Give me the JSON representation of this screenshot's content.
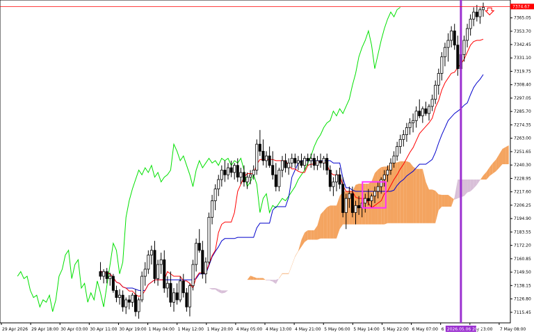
{
  "chart_data": {
    "type": "line",
    "y_axis": {
      "ticks": [
        7365.05,
        7353.7,
        7342.45,
        7331.1,
        7319.75,
        7308.4,
        7297.05,
        7285.7,
        7274.35,
        7263.0,
        7251.65,
        7240.3,
        7228.95,
        7217.6,
        7206.25,
        7194.9,
        7183.55,
        7172.2,
        7160.85,
        7149.5,
        7138.15,
        7126.8,
        7115.45
      ],
      "tick_labels": [
        "7365.05",
        "7353.70",
        "7342.45",
        "7331.10",
        "7319.75",
        "7308.40",
        "7297.05",
        "7285.70",
        "7274.35",
        "7263.00",
        "7251.65",
        "7240.30",
        "7228.95",
        "7217.60",
        "7206.25",
        "7194.90",
        "7183.55",
        "7172.20",
        "7160.85",
        "7149.50",
        "7138.15",
        "7126.80",
        "7115.45"
      ],
      "ylim": [
        7106.5,
        7380.2
      ]
    },
    "x_axis": {
      "tick_labels": [
        "29 Apr 2026",
        "29 Apr 18:00",
        "30 Apr 03:00",
        "30 Apr 11:00",
        "30 Apr 19:00",
        "1 May 04:00",
        "1 May 12:00",
        "1 May 20:00",
        "4 May 05:00",
        "4 May 13:00",
        "4 May 21:00",
        "5 May 06:00",
        "5 May 14:00",
        "5 May 22:00",
        "6 May 07:00",
        "6 May 15:00",
        "May 23:00",
        "7 May 08:00"
      ],
      "tick_index": [
        0,
        9,
        18,
        27,
        36,
        45,
        54,
        63,
        72,
        81,
        90,
        99,
        108,
        117,
        126,
        135,
        144,
        153
      ],
      "bars": 160
    },
    "current_price": {
      "value": 7374.67,
      "label": "7374.67"
    },
    "vertical_marker_label": "2026.05.06 20:00",
    "colors": {
      "bull_candle": "#ffffff",
      "bear_candle": "#000000",
      "tenkan": "#ff0000",
      "kijun": "#0000cc",
      "chikou": "#00e000",
      "kumo_bull": "#f4a460",
      "kumo_bear": "#d8bfd8",
      "vline": "#9b30d0",
      "box": "#ff30ff",
      "price_line": "#ff0000"
    },
    "candles": [
      [
        7150,
        7158,
        7143,
        7146
      ],
      [
        7146,
        7152,
        7140,
        7150
      ],
      [
        7150,
        7153,
        7140,
        7144
      ],
      [
        7144,
        7149,
        7138,
        7146
      ],
      [
        7146,
        7148,
        7132,
        7134
      ],
      [
        7134,
        7138,
        7124,
        7128
      ],
      [
        7128,
        7135,
        7122,
        7130
      ],
      [
        7130,
        7134,
        7116,
        7120
      ],
      [
        7120,
        7128,
        7114,
        7126
      ],
      [
        7126,
        7130,
        7118,
        7124
      ],
      [
        7124,
        7132,
        7120,
        7130
      ],
      [
        7130,
        7135,
        7112,
        7116
      ],
      [
        7116,
        7128,
        7110,
        7126
      ],
      [
        7126,
        7150,
        7124,
        7146
      ],
      [
        7146,
        7158,
        7138,
        7152
      ],
      [
        7152,
        7168,
        7148,
        7164
      ],
      [
        7164,
        7172,
        7156,
        7168
      ],
      [
        7168,
        7176,
        7140,
        7144
      ],
      [
        7144,
        7160,
        7138,
        7156
      ],
      [
        7156,
        7166,
        7148,
        7160
      ],
      [
        7160,
        7168,
        7132,
        7136
      ],
      [
        7136,
        7146,
        7128,
        7140
      ],
      [
        7140,
        7150,
        7120,
        7124
      ],
      [
        7124,
        7136,
        7116,
        7132
      ],
      [
        7132,
        7140,
        7122,
        7126
      ],
      [
        7126,
        7146,
        7124,
        7142
      ],
      [
        7142,
        7148,
        7128,
        7132
      ],
      [
        7132,
        7136,
        7116,
        7120
      ],
      [
        7120,
        7140,
        7112,
        7138
      ],
      [
        7138,
        7160,
        7134,
        7156
      ],
      [
        7156,
        7178,
        7150,
        7174
      ],
      [
        7174,
        7186,
        7166,
        7168
      ],
      [
        7168,
        7176,
        7144,
        7148
      ],
      [
        7148,
        7162,
        7140,
        7158
      ],
      [
        7158,
        7200,
        7156,
        7196
      ],
      [
        7196,
        7215,
        7190,
        7210
      ],
      [
        7210,
        7224,
        7202,
        7220
      ],
      [
        7220,
        7232,
        7214,
        7228
      ],
      [
        7228,
        7240,
        7222,
        7236
      ],
      [
        7236,
        7244,
        7226,
        7232
      ],
      [
        7232,
        7242,
        7228,
        7238
      ],
      [
        7238,
        7244,
        7230,
        7234
      ],
      [
        7234,
        7242,
        7228,
        7240
      ],
      [
        7240,
        7246,
        7226,
        7230
      ],
      [
        7230,
        7238,
        7224,
        7234
      ],
      [
        7234,
        7240,
        7222,
        7226
      ],
      [
        7226,
        7234,
        7220,
        7230
      ],
      [
        7230,
        7236,
        7224,
        7232
      ],
      [
        7232,
        7240,
        7228,
        7236
      ],
      [
        7236,
        7262,
        7232,
        7258
      ],
      [
        7258,
        7270,
        7248,
        7252
      ],
      [
        7252,
        7262,
        7240,
        7244
      ],
      [
        7244,
        7252,
        7238,
        7248
      ],
      [
        7248,
        7256,
        7238,
        7240
      ],
      [
        7240,
        7252,
        7228,
        7232
      ],
      [
        7232,
        7242,
        7218,
        7222
      ],
      [
        7222,
        7238,
        7218,
        7236
      ],
      [
        7236,
        7248,
        7230,
        7244
      ],
      [
        7244,
        7250,
        7234,
        7238
      ],
      [
        7238,
        7246,
        7232,
        7242
      ],
      [
        7242,
        7250,
        7238,
        7246
      ],
      [
        7246,
        7250,
        7238,
        7242
      ],
      [
        7242,
        7248,
        7236,
        7244
      ],
      [
        7244,
        7250,
        7238,
        7240
      ],
      [
        7240,
        7248,
        7236,
        7246
      ],
      [
        7246,
        7250,
        7240,
        7244
      ],
      [
        7244,
        7250,
        7238,
        7246
      ],
      [
        7246,
        7250,
        7236,
        7240
      ],
      [
        7240,
        7248,
        7236,
        7244
      ],
      [
        7244,
        7250,
        7238,
        7242
      ],
      [
        7242,
        7248,
        7236,
        7246
      ],
      [
        7246,
        7250,
        7232,
        7236
      ],
      [
        7236,
        7240,
        7218,
        7222
      ],
      [
        7222,
        7230,
        7214,
        7226
      ],
      [
        7226,
        7236,
        7218,
        7232
      ],
      [
        7232,
        7238,
        7220,
        7224
      ],
      [
        7224,
        7230,
        7196,
        7200
      ],
      [
        7200,
        7216,
        7186,
        7212
      ],
      [
        7212,
        7222,
        7204,
        7216
      ],
      [
        7216,
        7222,
        7196,
        7200
      ],
      [
        7200,
        7210,
        7190,
        7206
      ],
      [
        7206,
        7214,
        7198,
        7204
      ],
      [
        7204,
        7212,
        7196,
        7208
      ],
      [
        7208,
        7216,
        7200,
        7212
      ],
      [
        7212,
        7220,
        7206,
        7210
      ],
      [
        7210,
        7216,
        7204,
        7214
      ],
      [
        7214,
        7222,
        7208,
        7218
      ],
      [
        7218,
        7226,
        7212,
        7222
      ],
      [
        7222,
        7230,
        7216,
        7228
      ],
      [
        7228,
        7236,
        7222,
        7232
      ],
      [
        7232,
        7240,
        7226,
        7236
      ],
      [
        7236,
        7246,
        7232,
        7242
      ],
      [
        7242,
        7252,
        7238,
        7248
      ],
      [
        7248,
        7260,
        7244,
        7256
      ],
      [
        7256,
        7266,
        7250,
        7262
      ],
      [
        7262,
        7270,
        7256,
        7266
      ],
      [
        7266,
        7276,
        7260,
        7272
      ],
      [
        7272,
        7280,
        7266,
        7276
      ],
      [
        7276,
        7284,
        7268,
        7278
      ],
      [
        7278,
        7290,
        7272,
        7286
      ],
      [
        7286,
        7296,
        7280,
        7282
      ],
      [
        7282,
        7290,
        7276,
        7288
      ],
      [
        7288,
        7294,
        7282,
        7284
      ],
      [
        7284,
        7292,
        7278,
        7290
      ],
      [
        7290,
        7300,
        7286,
        7296
      ],
      [
        7296,
        7312,
        7292,
        7308
      ],
      [
        7308,
        7322,
        7300,
        7318
      ],
      [
        7318,
        7336,
        7312,
        7332
      ],
      [
        7332,
        7344,
        7324,
        7340
      ],
      [
        7340,
        7352,
        7328,
        7346
      ],
      [
        7346,
        7358,
        7340,
        7354
      ],
      [
        7354,
        7360,
        7338,
        7342
      ],
      [
        7342,
        7350,
        7316,
        7322
      ],
      [
        7322,
        7338,
        7316,
        7334
      ],
      [
        7334,
        7350,
        7328,
        7346
      ],
      [
        7346,
        7360,
        7340,
        7356
      ],
      [
        7356,
        7368,
        7350,
        7364
      ],
      [
        7364,
        7374,
        7358,
        7370
      ],
      [
        7370,
        7376,
        7362,
        7366
      ],
      [
        7366,
        7374,
        7360,
        7372
      ],
      [
        7372,
        7378,
        7366,
        7374
      ]
    ]
  }
}
